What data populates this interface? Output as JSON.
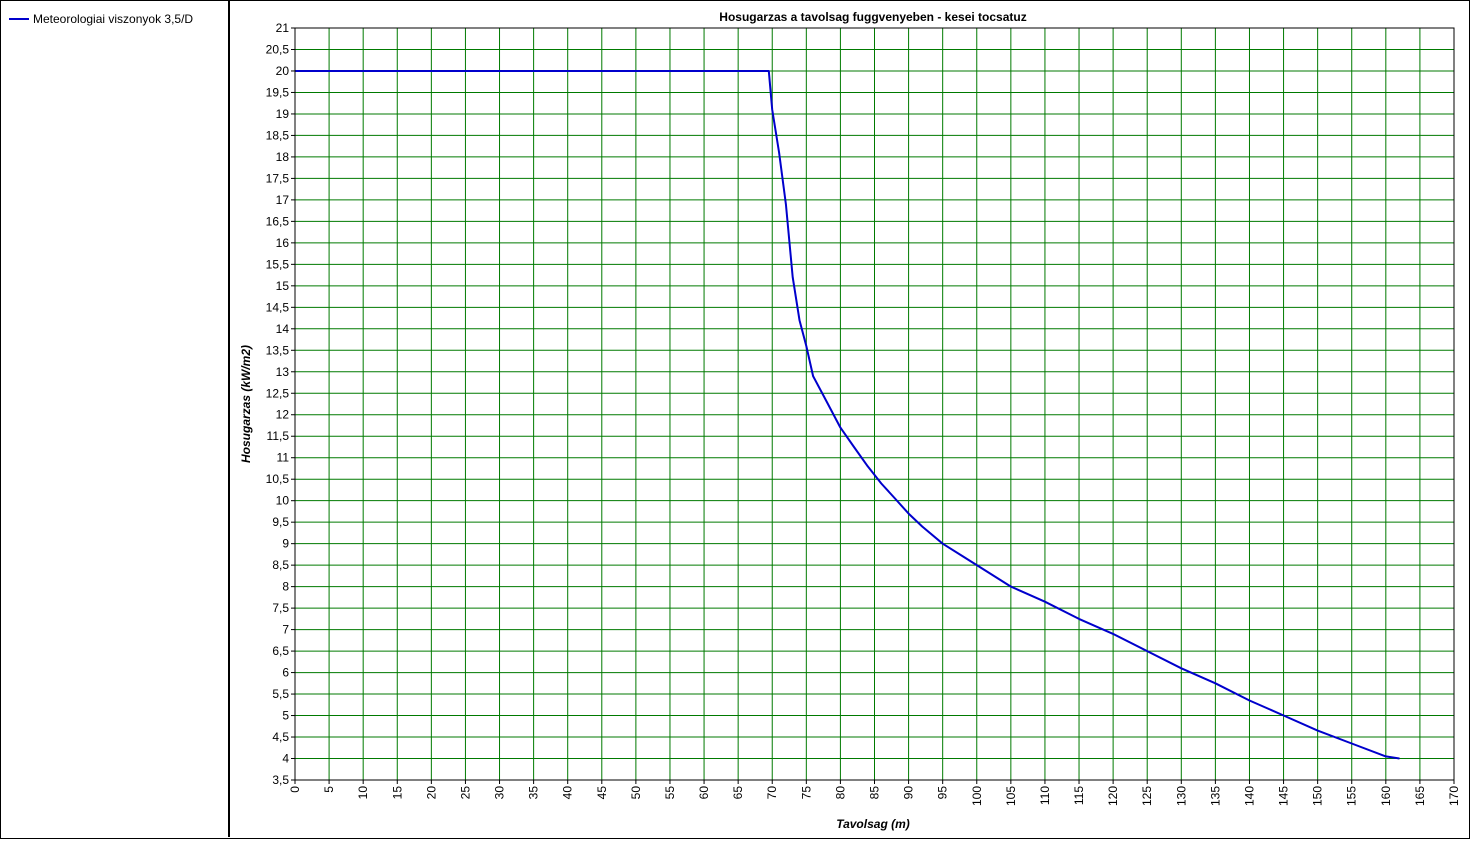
{
  "legend": {
    "entries": [
      {
        "label": "Meteorologiai viszonyok 3,5/D",
        "color": "#0000cc"
      }
    ]
  },
  "colors": {
    "grid": "#007a00",
    "series": "#0000cc",
    "axis": "#000000"
  },
  "chart_data": {
    "type": "line",
    "title": "Hosugarzas a tavolsag fuggvenyeben - kesei tocsatuz",
    "xlabel": "Tavolsag (m)",
    "ylabel": "Hosugarzas (kW/m2)",
    "xlim": [
      0,
      170
    ],
    "ylim": [
      3.5,
      21
    ],
    "x_ticks": [
      0,
      5,
      10,
      15,
      20,
      25,
      30,
      35,
      40,
      45,
      50,
      55,
      60,
      65,
      70,
      75,
      80,
      85,
      90,
      95,
      100,
      105,
      110,
      115,
      120,
      125,
      130,
      135,
      140,
      145,
      150,
      155,
      160,
      165,
      170
    ],
    "x_tick_labels": [
      "0",
      "5",
      "10",
      "15",
      "20",
      "25",
      "30",
      "35",
      "40",
      "45",
      "50",
      "55",
      "60",
      "65",
      "70",
      "75",
      "80",
      "85",
      "90",
      "95",
      "100",
      "105",
      "110",
      "115",
      "120",
      "125",
      "130",
      "135",
      "140",
      "145",
      "150",
      "155",
      "160",
      "165",
      "170"
    ],
    "y_ticks": [
      3.5,
      4,
      4.5,
      5,
      5.5,
      6,
      6.5,
      7,
      7.5,
      8,
      8.5,
      9,
      9.5,
      10,
      10.5,
      11,
      11.5,
      12,
      12.5,
      13,
      13.5,
      14,
      14.5,
      15,
      15.5,
      16,
      16.5,
      17,
      17.5,
      18,
      18.5,
      19,
      19.5,
      20,
      20.5,
      21
    ],
    "y_tick_labels": [
      "3,5",
      "4",
      "4,5",
      "5",
      "5,5",
      "6",
      "6,5",
      "7",
      "7,5",
      "8",
      "8,5",
      "9",
      "9,5",
      "10",
      "10,5",
      "11",
      "11,5",
      "12",
      "12,5",
      "13",
      "13,5",
      "14",
      "14,5",
      "15",
      "15,5",
      "16",
      "16,5",
      "17",
      "17,5",
      "18",
      "18,5",
      "19",
      "19,5",
      "20",
      "20,5",
      "21"
    ],
    "grid": true,
    "legend_position": "left-panel",
    "series": [
      {
        "name": "Meteorologiai viszonyok 3,5/D",
        "x": [
          0,
          69.5,
          70,
          71,
          72,
          73,
          74,
          75,
          76,
          78,
          80,
          82,
          84,
          86,
          88,
          90,
          92,
          95,
          98,
          100,
          105,
          110,
          115,
          120,
          125,
          130,
          135,
          140,
          145,
          150,
          155,
          160,
          162
        ],
        "y": [
          20,
          20,
          19.1,
          18.1,
          16.9,
          15.2,
          14.2,
          13.6,
          12.9,
          12.3,
          11.7,
          11.25,
          10.8,
          10.4,
          10.05,
          9.7,
          9.4,
          9.0,
          8.7,
          8.5,
          8.0,
          7.65,
          7.25,
          6.9,
          6.5,
          6.1,
          5.75,
          5.35,
          5.0,
          4.65,
          4.35,
          4.05,
          4.0
        ]
      }
    ]
  }
}
